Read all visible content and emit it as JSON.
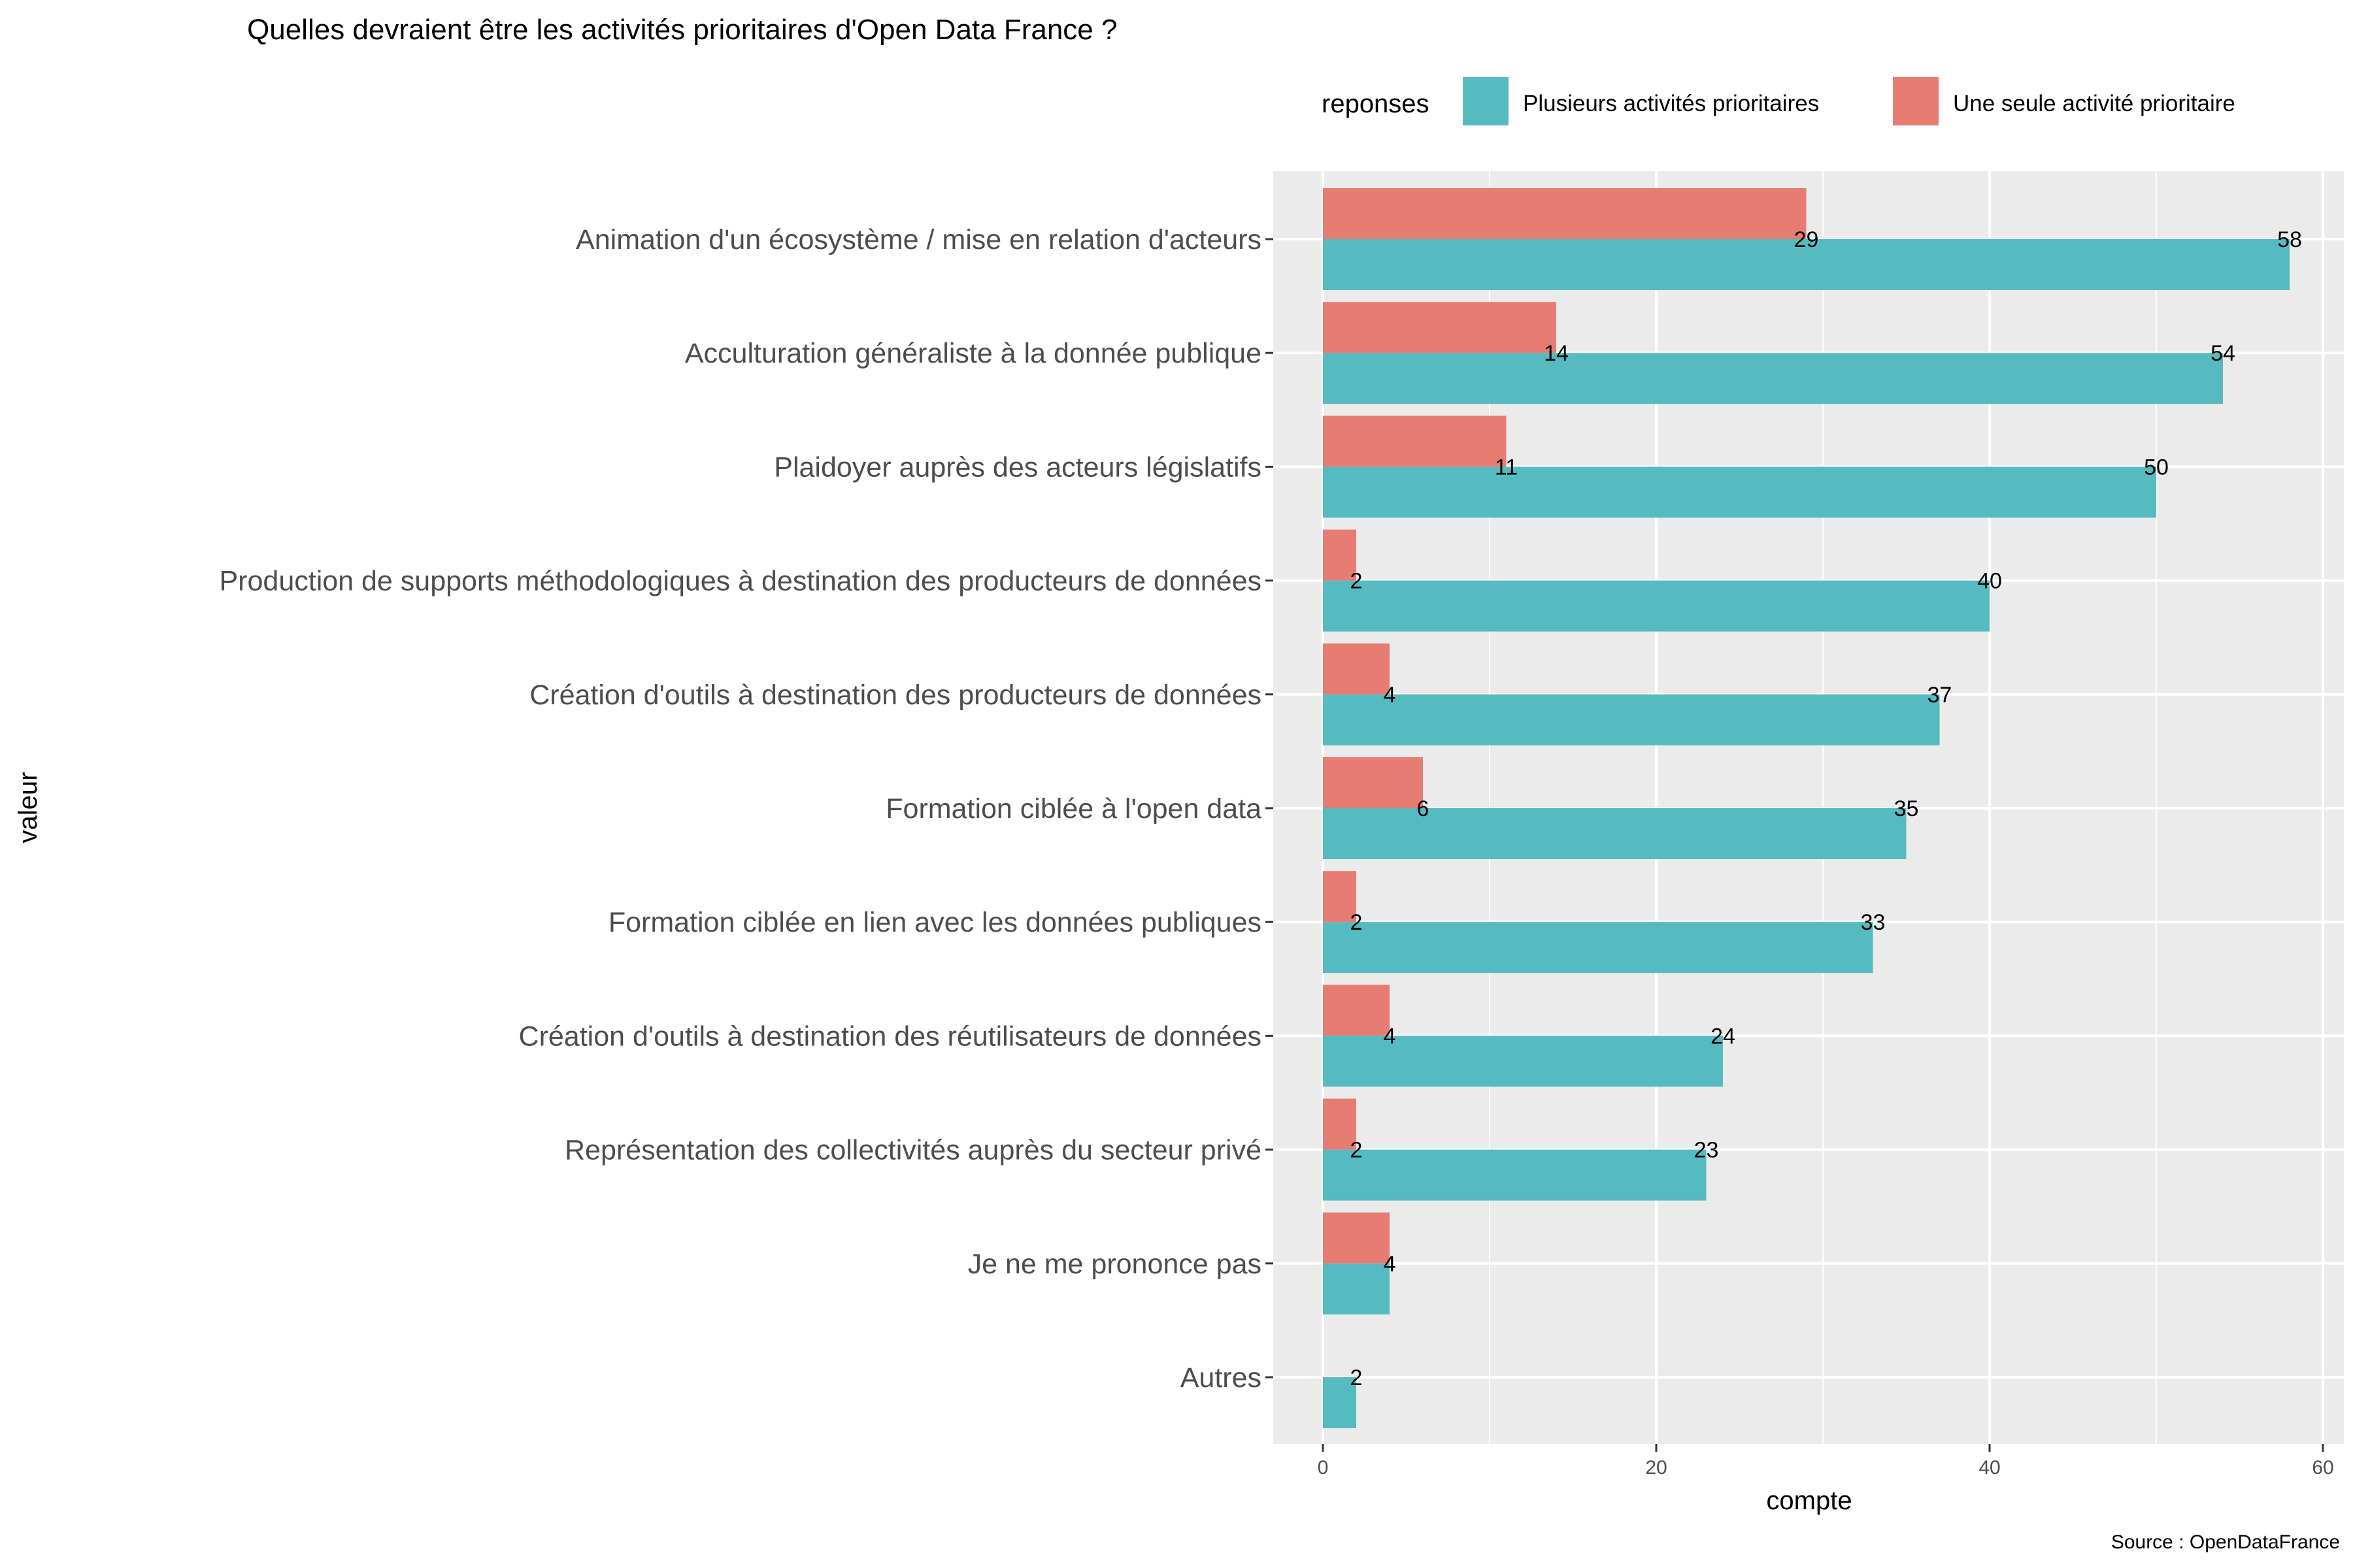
{
  "chart_data": {
    "type": "bar",
    "orientation": "horizontal",
    "title": "Quelles devraient être les activités prioritaires d'Open Data France ?",
    "xlabel": "compte",
    "ylabel": "valeur",
    "caption": "Source : OpenDataFrance",
    "xlim": [
      -3,
      60
    ],
    "xticks": [
      0,
      20,
      40,
      60
    ],
    "grid": true,
    "legend": {
      "title": "reponses",
      "position": "top-right"
    },
    "categories": [
      "Animation d'un écosystème / mise en relation d'acteurs",
      "Acculturation généraliste à la donnée publique",
      "Plaidoyer auprès des acteurs législatifs",
      "Production de supports méthodologiques à destination des producteurs de données",
      "Création d'outils à destination des producteurs de données",
      "Formation ciblée à l'open data",
      "Formation ciblée en lien avec les données publiques",
      "Création d'outils à destination des réutilisateurs de données",
      "Représentation des collectivités auprès du secteur privé",
      "Je ne me prononce pas",
      "Autres"
    ],
    "series": [
      {
        "name": "Plusieurs activités prioritaires",
        "color": "#56bbc0",
        "values": [
          58,
          54,
          50,
          40,
          37,
          35,
          33,
          24,
          23,
          4,
          2
        ]
      },
      {
        "name": "Une seule activité prioritaire",
        "color": "#e77c72",
        "values": [
          29,
          14,
          11,
          2,
          4,
          6,
          2,
          4,
          2,
          4,
          null
        ]
      }
    ]
  },
  "colors": {
    "panel_bg": "#ebebeb",
    "grid": "#ffffff"
  }
}
